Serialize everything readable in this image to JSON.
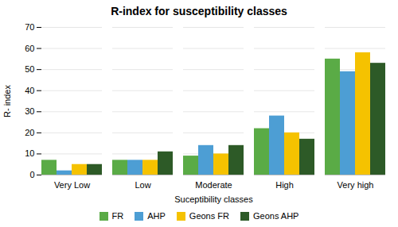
{
  "chart_data": {
    "type": "bar",
    "title": "R-index for susceptibility classes",
    "xlabel": "Suceptibility classes",
    "ylabel": "R- index",
    "categories": [
      "Very Low",
      "Low",
      "Moderate",
      "High",
      "Very high"
    ],
    "series": [
      {
        "name": "FR",
        "color": "#5aab46",
        "values": [
          7,
          7,
          9,
          22,
          55
        ]
      },
      {
        "name": "AHP",
        "color": "#4d9ed4",
        "values": [
          2,
          7,
          14,
          28,
          49
        ]
      },
      {
        "name": "Geons FR",
        "color": "#f5c200",
        "values": [
          5,
          7,
          10,
          20,
          58
        ]
      },
      {
        "name": "Geons AHP",
        "color": "#2d5a27",
        "values": [
          5,
          11,
          14,
          17,
          53
        ]
      }
    ],
    "ylim": [
      0,
      70
    ],
    "yticks": [
      0,
      10,
      20,
      30,
      40,
      50,
      60,
      70
    ],
    "grid": true,
    "legend": "bottom"
  }
}
